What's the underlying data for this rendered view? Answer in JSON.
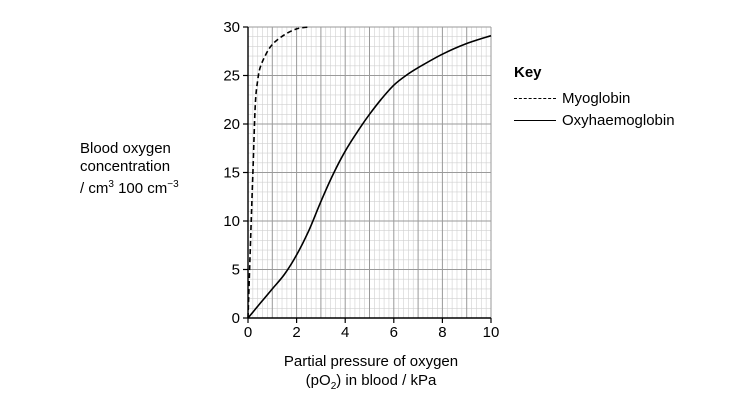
{
  "chart_data": {
    "type": "line",
    "xlabel_line1": "Partial pressure of oxygen",
    "xlabel_line2_pre": "(pO",
    "xlabel_line2_sub": "2",
    "xlabel_line2_post": ") in blood / kPa",
    "ylabel_line1": "Blood oxygen",
    "ylabel_line2": "concentration",
    "ylabel_line3_pre": "/ cm",
    "ylabel_line3_sup1": "3",
    "ylabel_line3_mid": " 100 cm",
    "ylabel_line3_sup2": "−3",
    "xlim": [
      0,
      10
    ],
    "ylim": [
      0,
      30
    ],
    "x_ticks": [
      0,
      2,
      4,
      6,
      8,
      10
    ],
    "y_ticks": [
      0,
      5,
      10,
      15,
      20,
      25,
      30
    ],
    "grid": true,
    "legend_title": "Key",
    "legend_position": "right",
    "series": [
      {
        "name": "Myoglobin",
        "style": "dashed",
        "x": [
          0,
          0.2,
          0.3,
          0.4,
          0.5,
          0.7,
          1.0,
          1.5,
          2.0,
          2.5
        ],
        "y": [
          0,
          15,
          22,
          24.5,
          25.8,
          27,
          28.2,
          29.2,
          29.8,
          30
        ]
      },
      {
        "name": "Oxyhaemoglobin",
        "style": "solid",
        "x": [
          0,
          0.5,
          1.0,
          1.5,
          2.0,
          2.5,
          3.0,
          3.5,
          4.0,
          4.5,
          5.0,
          5.5,
          6.0,
          6.5,
          7.0,
          8.0,
          9.0,
          10.0
        ],
        "y": [
          0,
          1.5,
          3.0,
          4.5,
          6.5,
          9.0,
          12.0,
          14.8,
          17.2,
          19.2,
          21.0,
          22.6,
          24.0,
          25.0,
          25.8,
          27.2,
          28.3,
          29.1
        ]
      }
    ]
  }
}
